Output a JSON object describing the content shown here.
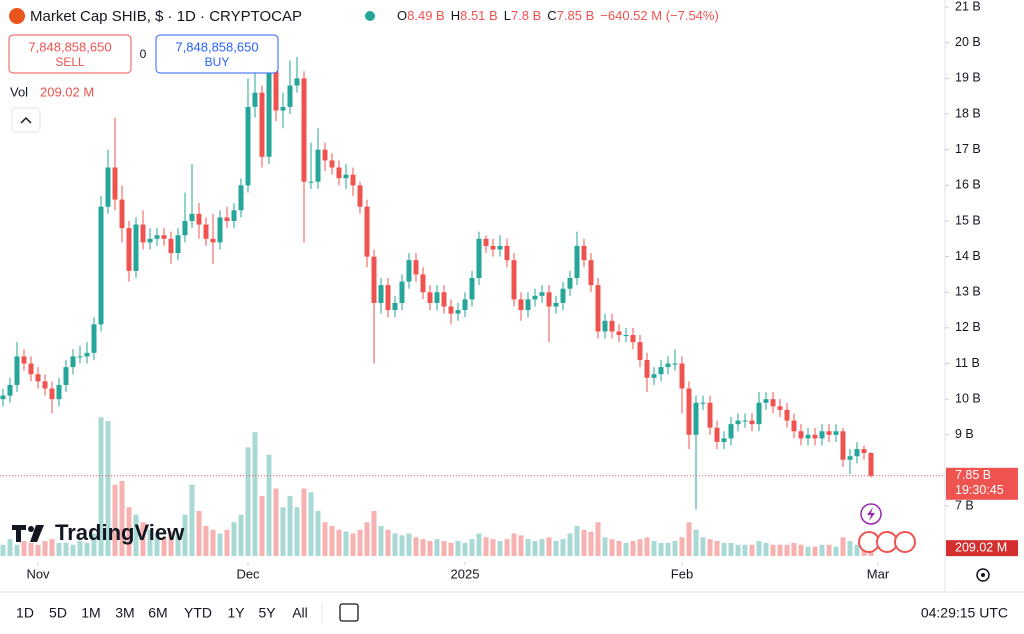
{
  "header": {
    "title": "Market Cap SHIB, $ · 1D · CRYPTOCAP",
    "ohlc": [
      {
        "key": "O",
        "value": "8.49 B"
      },
      {
        "key": "H",
        "value": "8.51 B"
      },
      {
        "key": "L",
        "value": "7.8 B"
      },
      {
        "key": "C",
        "value": "7.85 B"
      }
    ],
    "change": "−640.52 M (−7.54%)"
  },
  "trade": {
    "sell_price": "7,848,858,650",
    "sell": "SELL",
    "spread": "0",
    "buy_price": "7,848,858,650",
    "buy": "BUY"
  },
  "volume_legend": {
    "label": "Vol",
    "value": "209.02 M"
  },
  "logo": "TradingView",
  "chart_data": {
    "type": "candlestick",
    "open": [
      10.0,
      10.1,
      10.4,
      11.2,
      11.0,
      10.7,
      10.5,
      10.3,
      10.0,
      10.4,
      10.9,
      11.2,
      11.2,
      11.3,
      12.1,
      15.4,
      16.5,
      15.6,
      14.8,
      13.6,
      14.9,
      14.4,
      14.5,
      14.6,
      14.5,
      14.1,
      14.6,
      15.0,
      15.2,
      14.9,
      14.5,
      14.4,
      15.1,
      15.0,
      15.3,
      16.0,
      18.2,
      18.6,
      16.8,
      19.2,
      18.1,
      18.2,
      18.8,
      19.0,
      16.1,
      16.1,
      17.0,
      16.7,
      16.5,
      16.2,
      16.3,
      16.0,
      15.4,
      14.0,
      12.7,
      13.2,
      12.5,
      12.7,
      13.3,
      13.9,
      13.5,
      13.0,
      12.7,
      13.0,
      12.6,
      12.4,
      12.5,
      12.8,
      13.4,
      14.5,
      14.3,
      14.2,
      14.3,
      13.9,
      12.8,
      12.5,
      12.8,
      12.9,
      13.0,
      12.6,
      12.7,
      13.1,
      13.4,
      14.3,
      13.9,
      13.2,
      11.9,
      12.2,
      11.9,
      11.8,
      11.8,
      11.6,
      11.1,
      10.6,
      10.7,
      10.9,
      11.0,
      11.0,
      10.3,
      9.0,
      9.9,
      9.9,
      9.2,
      8.8,
      8.9,
      9.3,
      9.4,
      9.4,
      9.3,
      9.9,
      10.0,
      9.8,
      9.7,
      9.4,
      9.1,
      8.9,
      9.0,
      8.9,
      9.1,
      9.0,
      9.1,
      8.3,
      8.4,
      8.6,
      8.49
    ],
    "high": [
      10.3,
      10.6,
      11.6,
      11.4,
      11.2,
      10.9,
      10.7,
      10.5,
      10.6,
      11.1,
      11.4,
      11.5,
      11.6,
      12.3,
      15.7,
      17.0,
      17.9,
      16.0,
      15.0,
      15.1,
      15.3,
      14.8,
      14.8,
      14.8,
      14.7,
      14.8,
      15.8,
      16.6,
      15.5,
      15.1,
      15.2,
      15.3,
      15.4,
      15.5,
      16.2,
      19.0,
      19.6,
      18.8,
      19.7,
      19.4,
      18.6,
      19.5,
      19.6,
      19.2,
      17.2,
      17.6,
      17.2,
      16.9,
      16.7,
      16.6,
      16.5,
      16.1,
      15.6,
      14.2,
      13.4,
      13.4,
      12.9,
      13.5,
      14.1,
      14.1,
      13.7,
      13.2,
      13.2,
      13.2,
      12.8,
      12.7,
      13.0,
      13.6,
      14.7,
      14.6,
      14.5,
      14.6,
      14.5,
      14.1,
      13.0,
      13.0,
      13.1,
      13.2,
      13.2,
      12.9,
      13.3,
      13.6,
      14.7,
      14.5,
      14.1,
      13.4,
      12.4,
      12.4,
      12.1,
      12.0,
      12.0,
      11.8,
      11.3,
      10.9,
      11.1,
      11.2,
      11.4,
      11.2,
      10.5,
      10.1,
      10.1,
      10.1,
      9.4,
      9.1,
      9.5,
      9.6,
      9.6,
      9.6,
      10.2,
      10.2,
      10.2,
      10.0,
      9.9,
      9.6,
      9.3,
      9.2,
      9.2,
      9.3,
      9.3,
      9.3,
      9.2,
      8.6,
      8.8,
      8.7,
      8.51
    ],
    "low": [
      9.8,
      9.9,
      10.2,
      10.8,
      10.5,
      10.3,
      10.1,
      9.6,
      9.8,
      10.2,
      10.7,
      11.0,
      11.0,
      11.1,
      11.9,
      15.2,
      15.3,
      14.4,
      13.3,
      13.4,
      14.2,
      14.2,
      14.3,
      14.3,
      13.8,
      13.9,
      14.4,
      14.8,
      14.5,
      14.3,
      13.8,
      14.2,
      14.8,
      14.8,
      15.1,
      15.8,
      17.9,
      16.5,
      16.6,
      17.8,
      17.6,
      18.0,
      18.6,
      14.4,
      15.9,
      15.9,
      16.4,
      16.3,
      16.0,
      15.9,
      15.7,
      15.2,
      13.7,
      11.0,
      12.4,
      12.3,
      12.3,
      12.5,
      13.1,
      13.3,
      12.8,
      12.5,
      12.5,
      12.4,
      12.1,
      12.2,
      12.3,
      12.6,
      13.2,
      14.1,
      14.0,
      14.0,
      13.7,
      12.6,
      12.2,
      12.3,
      12.6,
      12.7,
      11.6,
      12.4,
      12.5,
      12.9,
      13.2,
      13.7,
      13.0,
      11.7,
      11.7,
      11.7,
      11.6,
      11.6,
      11.4,
      10.9,
      10.2,
      10.4,
      10.5,
      10.7,
      10.8,
      9.6,
      8.6,
      6.9,
      9.7,
      9.0,
      8.6,
      8.6,
      8.7,
      9.1,
      9.2,
      9.1,
      9.1,
      9.7,
      9.6,
      9.5,
      9.2,
      8.9,
      8.7,
      8.7,
      8.7,
      8.7,
      8.8,
      8.8,
      8.1,
      7.9,
      8.2,
      8.3,
      7.8
    ],
    "close": [
      10.1,
      10.4,
      11.2,
      11.0,
      10.7,
      10.5,
      10.3,
      10.0,
      10.4,
      10.9,
      11.2,
      11.2,
      11.3,
      12.1,
      15.4,
      16.5,
      15.6,
      14.8,
      13.6,
      14.9,
      14.4,
      14.5,
      14.6,
      14.5,
      14.1,
      14.6,
      15.0,
      15.2,
      14.9,
      14.5,
      14.4,
      15.1,
      15.0,
      15.3,
      16.0,
      18.2,
      18.6,
      16.8,
      19.2,
      18.1,
      18.2,
      18.8,
      19.0,
      16.1,
      16.1,
      17.0,
      16.7,
      16.5,
      16.2,
      16.3,
      16.0,
      15.4,
      14.0,
      12.7,
      13.2,
      12.5,
      12.7,
      13.3,
      13.9,
      13.5,
      13.0,
      12.7,
      13.0,
      12.6,
      12.4,
      12.5,
      12.8,
      13.4,
      14.5,
      14.3,
      14.2,
      14.3,
      13.9,
      12.8,
      12.5,
      12.8,
      12.9,
      13.0,
      12.6,
      12.7,
      13.1,
      13.4,
      14.3,
      13.9,
      13.2,
      11.9,
      12.2,
      11.9,
      11.8,
      11.8,
      11.6,
      11.1,
      10.6,
      10.7,
      10.9,
      11.0,
      11.0,
      10.3,
      9.0,
      9.9,
      9.9,
      9.2,
      8.8,
      8.9,
      9.3,
      9.4,
      9.4,
      9.3,
      9.9,
      10.0,
      9.8,
      9.7,
      9.4,
      9.1,
      8.9,
      9.0,
      8.9,
      9.1,
      9.0,
      9.1,
      8.3,
      8.4,
      8.6,
      8.49,
      7.85
    ],
    "volume": [
      300,
      450,
      300,
      400,
      350,
      300,
      400,
      450,
      350,
      350,
      300,
      400,
      350,
      600,
      3700,
      3600,
      1900,
      2000,
      1300,
      1100,
      900,
      700,
      600,
      500,
      650,
      600,
      1100,
      1900,
      1200,
      800,
      700,
      600,
      700,
      900,
      1100,
      2900,
      3300,
      1600,
      2700,
      1800,
      1300,
      1600,
      1300,
      1800,
      1700,
      1200,
      900,
      800,
      700,
      650,
      600,
      700,
      900,
      1200,
      800,
      700,
      600,
      550,
      600,
      500,
      450,
      400,
      450,
      400,
      350,
      400,
      350,
      450,
      600,
      500,
      450,
      400,
      450,
      600,
      550,
      450,
      400,
      450,
      500,
      400,
      450,
      600,
      800,
      700,
      650,
      900,
      500,
      450,
      400,
      350,
      400,
      450,
      500,
      400,
      350,
      350,
      400,
      500,
      900,
      700,
      500,
      450,
      400,
      350,
      350,
      300,
      300,
      300,
      400,
      350,
      300,
      300,
      300,
      350,
      300,
      250,
      250,
      300,
      300,
      250,
      500,
      400,
      300,
      250,
      209.02
    ],
    "ylim": [
      5.6,
      21.2
    ],
    "yticks": [
      {
        "value": 21,
        "label": "21 B"
      },
      {
        "value": 20,
        "label": "20 B"
      },
      {
        "value": 19,
        "label": "19 B"
      },
      {
        "value": 18,
        "label": "18 B"
      },
      {
        "value": 17,
        "label": "17 B"
      },
      {
        "value": 16,
        "label": "16 B"
      },
      {
        "value": 15,
        "label": "15 B"
      },
      {
        "value": 14,
        "label": "14 B"
      },
      {
        "value": 13,
        "label": "13 B"
      },
      {
        "value": 12,
        "label": "12 B"
      },
      {
        "value": 11,
        "label": "11 B"
      },
      {
        "value": 10,
        "label": "10 B"
      },
      {
        "value": 9,
        "label": "9 B"
      },
      {
        "value": 7,
        "label": "7 B"
      }
    ],
    "volume_lim": [
      0,
      4000
    ],
    "xticks": [
      {
        "value": 5,
        "label": "Nov"
      },
      {
        "value": 35,
        "label": "Dec"
      },
      {
        "value": 66,
        "label": "2025"
      },
      {
        "value": 97,
        "label": "Feb"
      },
      {
        "value": 125,
        "label": "Mar"
      }
    ],
    "last_price_label": "7.85 B",
    "countdown": "19:30:45",
    "last_volume_label": "209.02 M",
    "up_color": "#26a69a",
    "down_color": "#ef5350",
    "volume_up_color": "#a8d9d4",
    "volume_down_color": "#f7b1b0"
  },
  "toolbar": {
    "ranges": [
      "1D",
      "5D",
      "1M",
      "3M",
      "6M",
      "YTD",
      "1Y",
      "5Y",
      "All"
    ],
    "clock": "04:29:15 UTC"
  }
}
